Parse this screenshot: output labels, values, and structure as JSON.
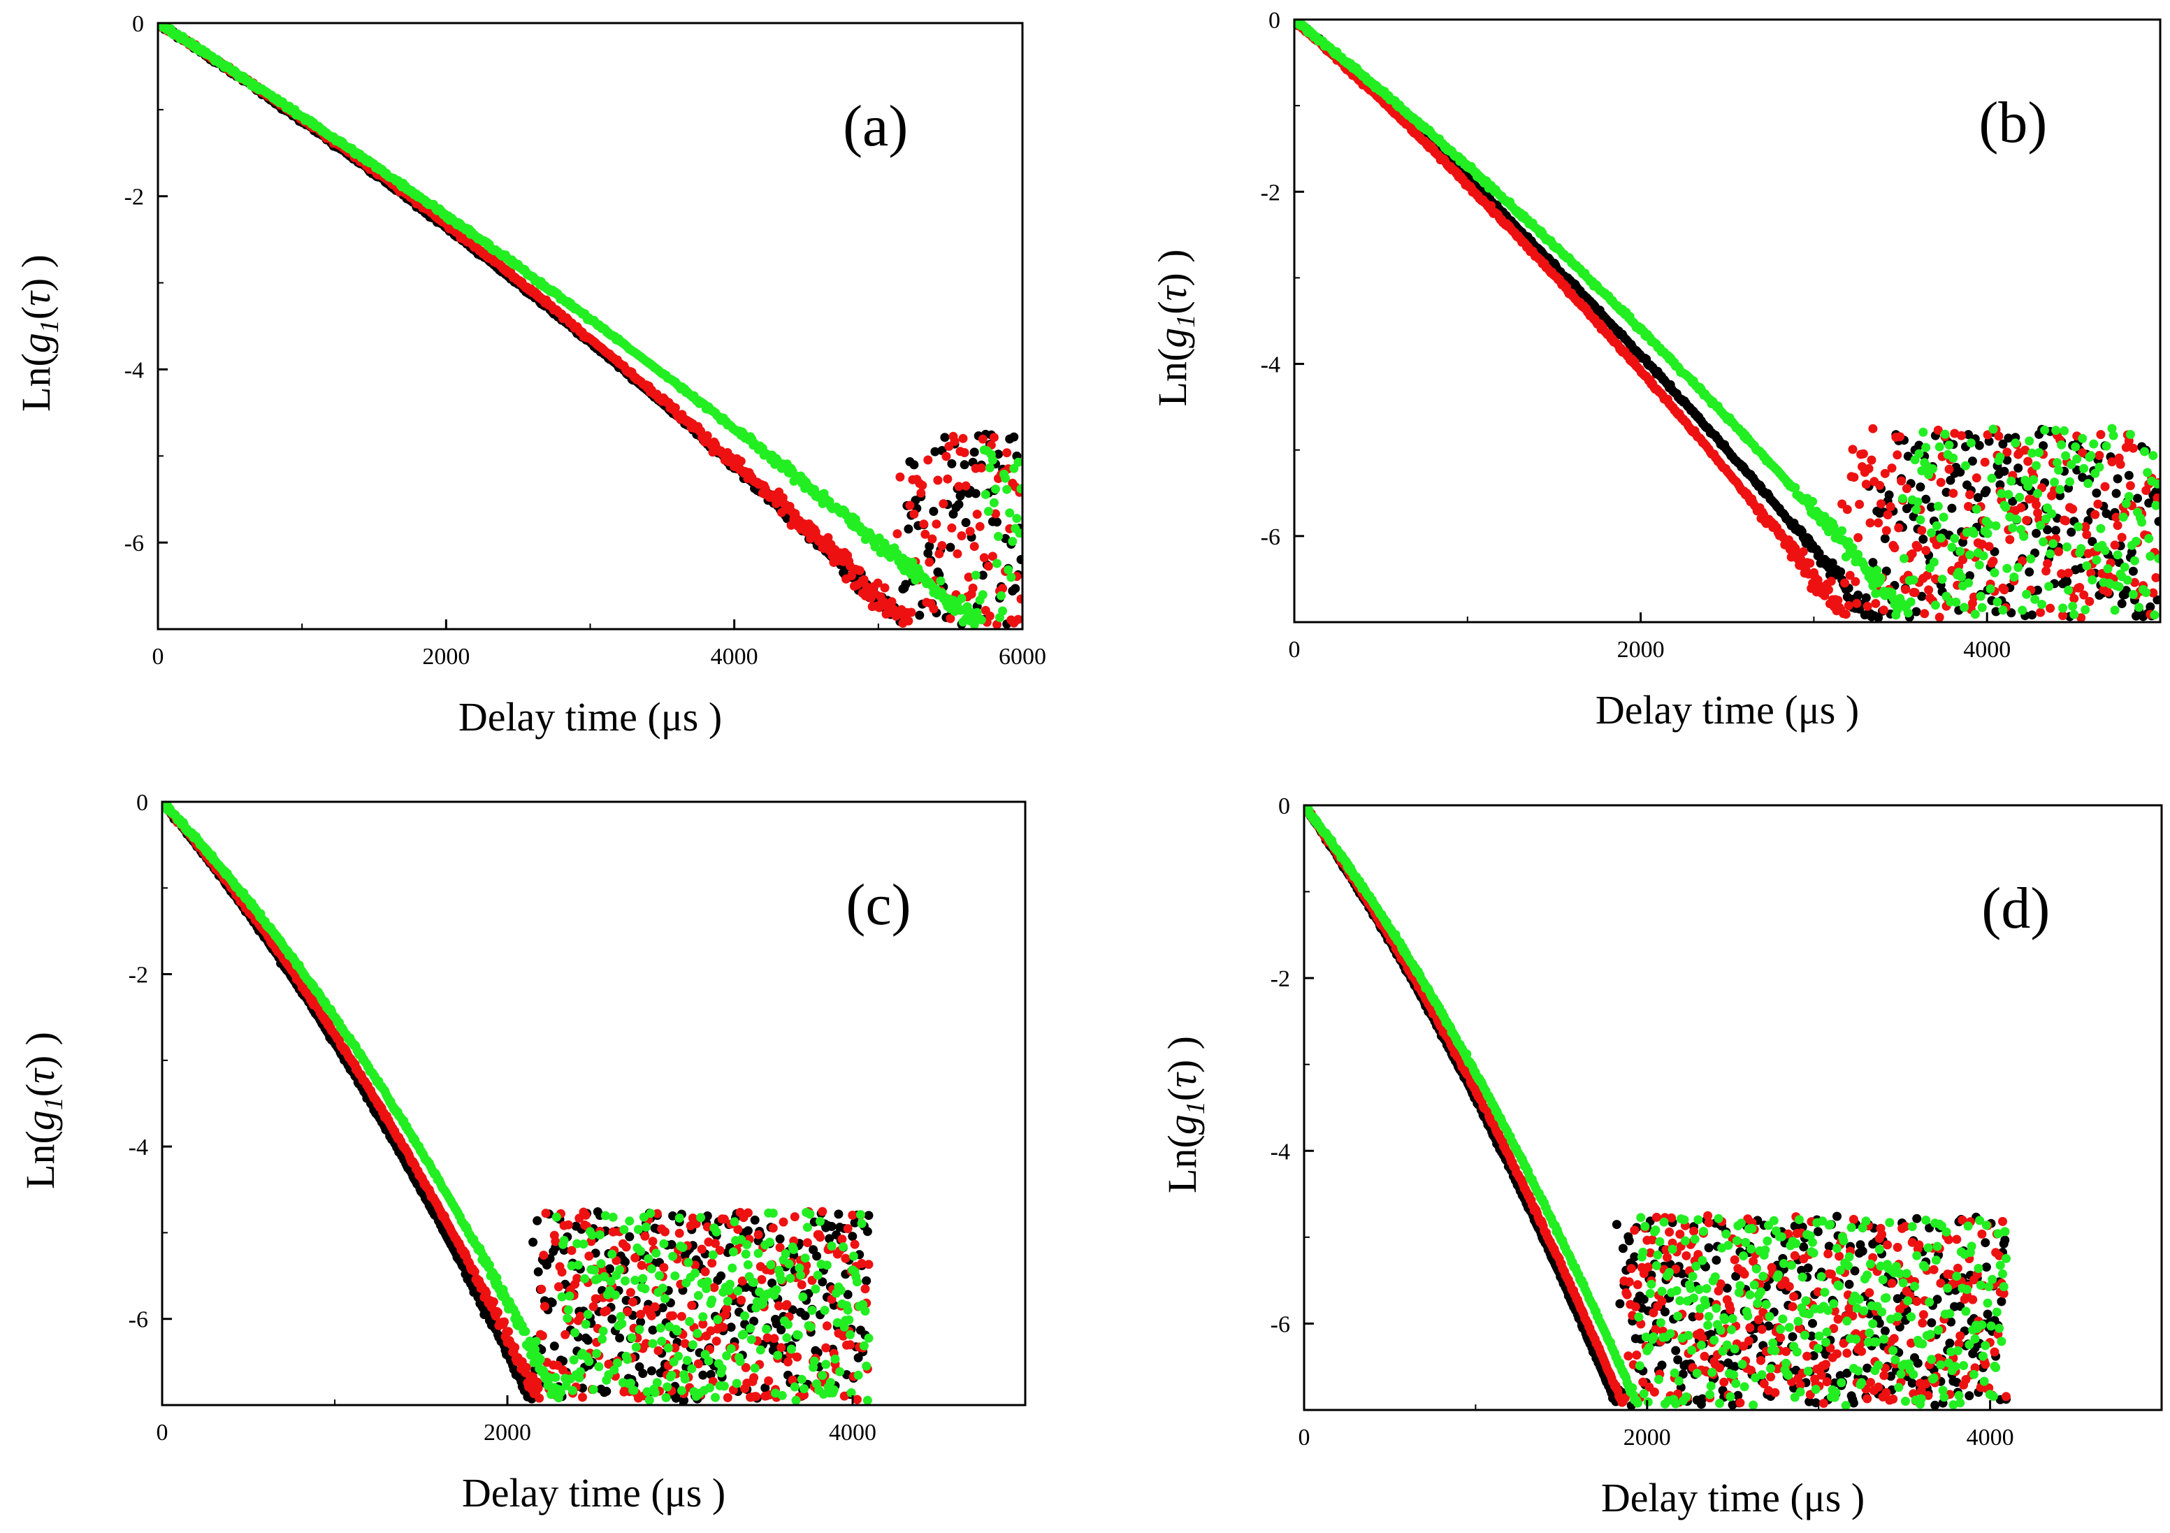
{
  "figure": {
    "marker_colors": {
      "black": "#000000",
      "red": "#ee1111",
      "green": "#22ee22"
    }
  },
  "chart_data": [
    {
      "type": "scatter",
      "panel_label": "(a)",
      "xlabel": "Delay time (μs )",
      "ylabel": "Ln(g1(τ) )",
      "xlim": [
        0,
        6000
      ],
      "ylim": [
        -7,
        0
      ],
      "xticks": [
        0,
        2000,
        4000,
        6000
      ],
      "yticks": [
        0,
        -2,
        -4,
        -6
      ],
      "x_max_data": 6000,
      "series": [
        {
          "name": "black",
          "color": "#000000",
          "curve": {
            "a": 0.00108,
            "b": 5e-08
          },
          "noise_start": 0.55,
          "noise_mag": 0.35
        },
        {
          "name": "red",
          "color": "#ee1111",
          "curve": {
            "a": 0.00105,
            "b": 5.5e-08
          },
          "noise_start": 0.5,
          "noise_mag": 0.55
        },
        {
          "name": "green",
          "color": "#22ee22",
          "curve": {
            "a": 0.00105,
            "b": 3e-08
          },
          "noise_start": 0.55,
          "noise_mag": 0.3
        }
      ]
    },
    {
      "type": "scatter",
      "panel_label": "(b)",
      "xlabel": "Delay time (μs )",
      "ylabel": "Ln(g1(τ) )",
      "xlim": [
        0,
        5000
      ],
      "ylim": [
        -7,
        0
      ],
      "xticks": [
        0,
        2000,
        4000
      ],
      "yticks": [
        0,
        -2,
        -4,
        -6
      ],
      "x_max_data": 5000,
      "series": [
        {
          "name": "black",
          "color": "#000000",
          "curve": {
            "a": 0.00175,
            "b": 1e-07
          },
          "noise_start": 0.55,
          "noise_mag": 1.4
        },
        {
          "name": "red",
          "color": "#ee1111",
          "curve": {
            "a": 0.0018,
            "b": 1.2e-07
          },
          "noise_start": 0.5,
          "noise_mag": 1.5
        },
        {
          "name": "green",
          "color": "#22ee22",
          "curve": {
            "a": 0.0016,
            "b": 1e-07
          },
          "noise_start": 0.55,
          "noise_mag": 1.2
        }
      ]
    },
    {
      "type": "scatter",
      "panel_label": "(c)",
      "xlabel": "Delay time (μs )",
      "ylabel": "Ln(g1(τ) )",
      "xlim": [
        0,
        5000
      ],
      "ylim": [
        -7,
        0
      ],
      "xticks": [
        0,
        2000,
        4000
      ],
      "yticks": [
        0,
        -2,
        -4,
        -6
      ],
      "x_max_data": 4100,
      "series": [
        {
          "name": "black",
          "color": "#000000",
          "curve": {
            "a": 0.0024,
            "b": 4e-07
          },
          "noise_start": 0.4,
          "noise_mag": 1.6
        },
        {
          "name": "red",
          "color": "#ee1111",
          "curve": {
            "a": 0.0023,
            "b": 4e-07
          },
          "noise_start": 0.4,
          "noise_mag": 1.6
        },
        {
          "name": "green",
          "color": "#22ee22",
          "curve": {
            "a": 0.0021,
            "b": 4e-07
          },
          "noise_start": 0.4,
          "noise_mag": 1.5
        }
      ]
    },
    {
      "type": "scatter",
      "panel_label": "(d)",
      "xlabel": "Delay time (μs )",
      "ylabel": "Ln(g1(τ) )",
      "xlim": [
        0,
        5000
      ],
      "ylim": [
        -7,
        0
      ],
      "xticks": [
        0,
        2000,
        4000
      ],
      "yticks": [
        0,
        -2,
        -4,
        -6
      ],
      "x_max_data": 4100,
      "series": [
        {
          "name": "black",
          "color": "#000000",
          "curve": {
            "a": 0.0029,
            "b": 5e-07
          },
          "noise_start": 0.42,
          "noise_mag": 1.6
        },
        {
          "name": "red",
          "color": "#ee1111",
          "curve": {
            "a": 0.0028,
            "b": 5e-07
          },
          "noise_start": 0.42,
          "noise_mag": 1.6
        },
        {
          "name": "green",
          "color": "#22ee22",
          "curve": {
            "a": 0.0026,
            "b": 5e-07
          },
          "noise_start": 0.42,
          "noise_mag": 1.6
        }
      ]
    }
  ]
}
